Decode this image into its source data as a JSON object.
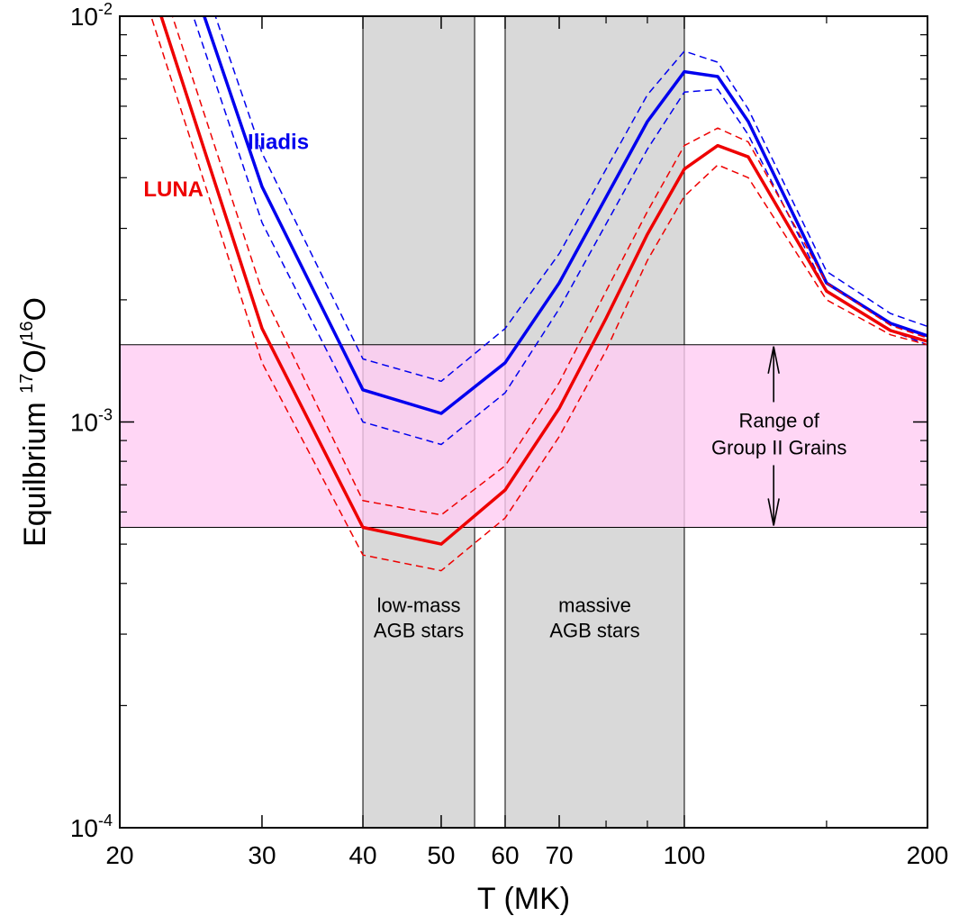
{
  "chart_data": {
    "type": "line",
    "xlabel": "T (MK)",
    "ylabel": {
      "prefix": "Equilbrium ",
      "iso1_mass": "17",
      "iso1": "O/",
      "iso2_mass": "16",
      "iso2": "O"
    },
    "x_scale": "log",
    "y_scale": "log",
    "xlim": [
      20,
      200
    ],
    "ylim": [
      0.0001,
      0.01
    ],
    "x_ticks": [
      20,
      30,
      40,
      50,
      60,
      70,
      100,
      200
    ],
    "x_tick_labels": [
      "20",
      "30",
      "40",
      "50",
      "60",
      "70",
      "100",
      "200"
    ],
    "y_ticks": [
      {
        "value": 0.01,
        "base": "10",
        "exp": "-2"
      },
      {
        "value": 0.001,
        "base": "10",
        "exp": "-3"
      },
      {
        "value": 0.0001,
        "base": "10",
        "exp": "-4"
      }
    ],
    "shaded_regions": [
      {
        "x": [
          40,
          55
        ],
        "label_lines": [
          "low-mass",
          "AGB stars"
        ],
        "label_y": 0.00034,
        "color": "#d9d9d9"
      },
      {
        "x": [
          60,
          100
        ],
        "label_lines": [
          "massive",
          "AGB stars"
        ],
        "label_y": 0.00034,
        "color": "#d9d9d9"
      }
    ],
    "band": {
      "y": [
        0.00055,
        0.00155
      ],
      "label_lines": [
        "Range of",
        "Group II Grains"
      ],
      "label_x": 131,
      "label_y": 0.00097,
      "color": "#ffccf2"
    },
    "series": [
      {
        "name": "Iliadis",
        "color": "#0000ee",
        "style": "solid",
        "x": [
          22.5,
          30,
          40,
          50,
          60,
          70,
          90,
          100,
          110,
          120,
          150,
          180,
          200
        ],
        "y": [
          0.0206,
          0.0038,
          0.0012,
          0.00105,
          0.0014,
          0.0022,
          0.0055,
          0.0073,
          0.0071,
          0.0055,
          0.0022,
          0.00175,
          0.00163
        ]
      },
      {
        "name": "",
        "color": "#0000ee",
        "style": "dashed",
        "x": [
          22.5,
          30,
          40,
          50,
          60,
          70,
          90,
          100,
          110,
          120,
          150,
          180,
          200
        ],
        "y": [
          0.0247,
          0.0046,
          0.00143,
          0.00126,
          0.0017,
          0.0026,
          0.0064,
          0.0082,
          0.0077,
          0.0059,
          0.00235,
          0.00185,
          0.00172
        ]
      },
      {
        "name": "",
        "color": "#0000ee",
        "style": "dashed",
        "x": [
          22.5,
          30,
          40,
          50,
          60,
          70,
          90,
          100,
          110,
          120,
          150,
          180,
          200
        ],
        "y": [
          0.0173,
          0.0031,
          0.001,
          0.00088,
          0.00118,
          0.0019,
          0.0047,
          0.0065,
          0.0066,
          0.0051,
          0.0021,
          0.00168,
          0.00155
        ]
      },
      {
        "name": "LUNA",
        "color": "#ee0000",
        "style": "solid",
        "x": [
          20,
          30,
          40,
          50,
          60,
          70,
          80,
          90,
          100,
          110,
          120,
          150,
          180,
          200
        ],
        "y": [
          0.0207,
          0.0017,
          0.00055,
          0.0005,
          0.00068,
          0.00108,
          0.0018,
          0.0029,
          0.0042,
          0.0048,
          0.0045,
          0.0021,
          0.00168,
          0.00158
        ]
      },
      {
        "name": "",
        "color": "#ee0000",
        "style": "dashed",
        "x": [
          20,
          30,
          40,
          50,
          60,
          70,
          80,
          90,
          100,
          110,
          120,
          150,
          180,
          200
        ],
        "y": [
          0.025,
          0.0021,
          0.00064,
          0.00059,
          0.00078,
          0.00125,
          0.0021,
          0.0033,
          0.0048,
          0.0053,
          0.0049,
          0.0022,
          0.00173,
          0.00161
        ]
      },
      {
        "name": "",
        "color": "#ee0000",
        "style": "dashed",
        "x": [
          20,
          30,
          40,
          50,
          60,
          70,
          80,
          90,
          100,
          110,
          120,
          150,
          180,
          200
        ],
        "y": [
          0.0174,
          0.0014,
          0.00047,
          0.00043,
          0.00058,
          0.00092,
          0.0015,
          0.0025,
          0.0036,
          0.0043,
          0.004,
          0.002,
          0.00164,
          0.00155
        ]
      }
    ],
    "series_labels": [
      {
        "text": "Iliadis",
        "color": "#0000ee",
        "x": 28.8,
        "y": 0.0047
      },
      {
        "text": "LUNA",
        "color": "#ee0000",
        "x": 21.4,
        "y": 0.0036
      }
    ],
    "grid": false,
    "legend": "none"
  }
}
